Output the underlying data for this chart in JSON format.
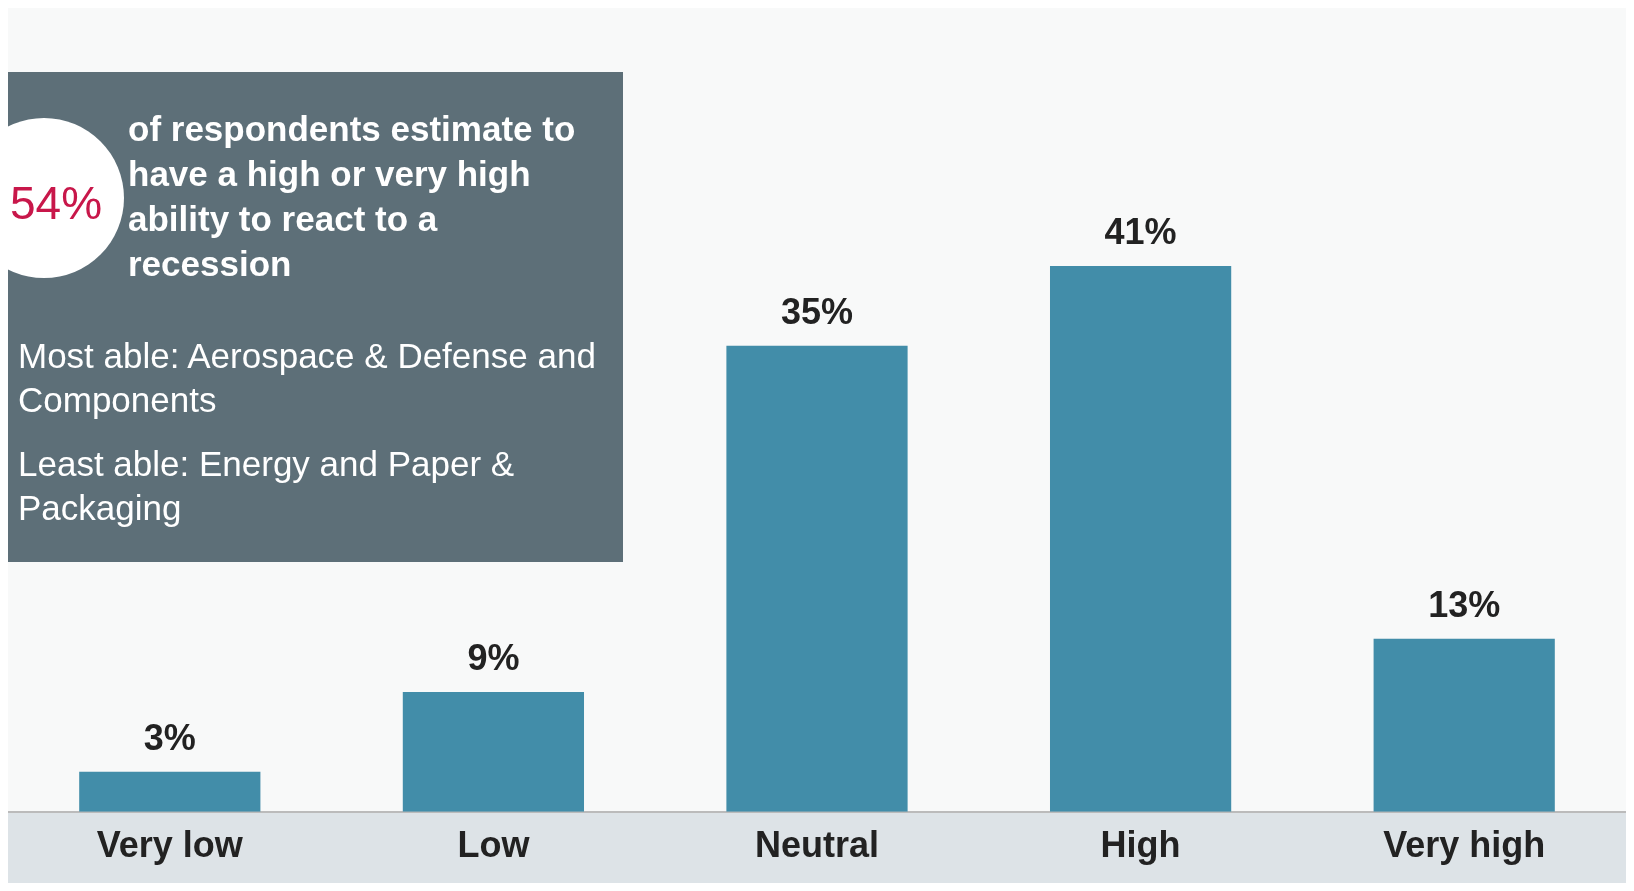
{
  "chart_data": {
    "type": "bar",
    "categories": [
      "Very low",
      "Low",
      "Neutral",
      "High",
      "Very high"
    ],
    "values": [
      3,
      9,
      35,
      41,
      13
    ],
    "color": "#428da9",
    "value_labels": [
      "3%",
      "9%",
      "35%",
      "41%",
      "13%"
    ],
    "annotations": [
      "54%",
      "of respondents estimate to have a high or very high ability to react to a recession",
      "Most able: Aerospace & Defense and Components",
      "Least able: Energy and Paper & Packaging"
    ],
    "grid": false,
    "legend": false
  }
}
